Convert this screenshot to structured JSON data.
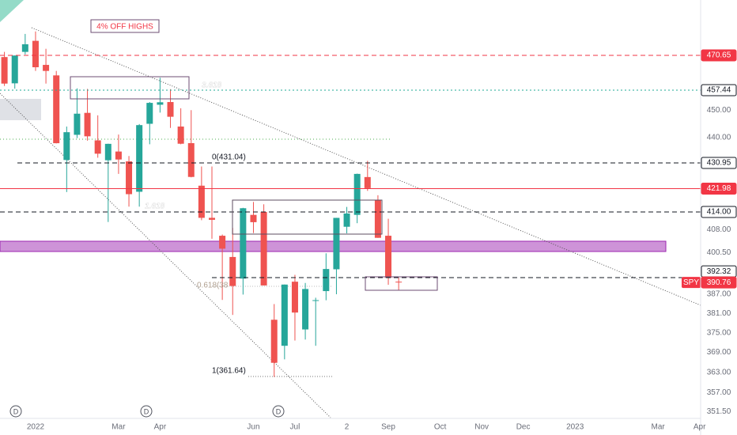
{
  "chart_data": {
    "type": "candlestick",
    "log_scale": true,
    "up_color": "#26a69a",
    "down_color": "#ef5350",
    "categories": [
      null,
      null,
      null,
      "2022",
      null,
      null,
      null,
      null,
      null,
      null,
      null,
      "Mar",
      null,
      null,
      null,
      "Apr",
      null,
      null,
      null,
      null,
      null,
      null,
      null,
      null,
      "Jun",
      null,
      null,
      null,
      "Jul",
      null,
      null,
      null,
      null,
      "2",
      null,
      null,
      null,
      "Sep",
      null,
      null,
      null,
      null,
      "Oct",
      null,
      null,
      null,
      "Nov",
      null,
      null,
      null,
      "Dec",
      null,
      null,
      null,
      null,
      "2023",
      null,
      null,
      null,
      null,
      null,
      null,
      null,
      "Mar",
      null,
      null,
      null,
      "Apr"
    ],
    "open": [
      470,
      460,
      472,
      476.3,
      467,
      463,
      432,
      441,
      449,
      439,
      431.9,
      435,
      431.5,
      420.9,
      445,
      452,
      453,
      444,
      438,
      423,
      412,
      406,
      399,
      392,
      413,
      414,
      379,
      371,
      391,
      376,
      385,
      388,
      395,
      409,
      413,
      426,
      418,
      406,
      391,
      null,
      null,
      null,
      null,
      null,
      null,
      null,
      null,
      null,
      null,
      null,
      null,
      null,
      null,
      null,
      null,
      null,
      null,
      null,
      null,
      null,
      null,
      null,
      null,
      null,
      null,
      null,
      null,
      null
    ],
    "high": [
      472,
      470.6,
      479,
      479.98,
      473.2,
      464.7,
      444,
      458.1,
      457.9,
      448.1,
      437.8,
      441.1,
      433.4,
      444.9,
      453,
      462.1,
      457.8,
      450.7,
      450,
      429.7,
      429.7,
      406.4,
      408.6,
      415.4,
      417.4,
      416.6,
      383.9,
      390.1,
      393.2,
      390.6,
      385.9,
      400.2,
      412,
      415.7,
      427.2,
      431.7,
      419.7,
      411.7,
      392.3,
      null,
      null,
      null,
      null,
      null,
      null,
      null,
      null,
      null,
      null,
      null,
      null,
      null,
      null,
      null,
      null,
      null,
      null,
      null,
      null,
      null,
      null,
      null,
      null,
      null,
      null,
      null,
      null,
      null
    ],
    "low": [
      459,
      458,
      471,
      464.7,
      459.9,
      437.9,
      420.8,
      439.8,
      438.9,
      432.8,
      410.6,
      427.1,
      415.8,
      415.8,
      437.6,
      449.1,
      443.5,
      437.6,
      425.9,
      411.2,
      405,
      385.2,
      380.5,
      386.9,
      406.9,
      389.8,
      361.64,
      366.9,
      372.6,
      372.9,
      371,
      385.1,
      387,
      406.8,
      410.2,
      421.2,
      405.3,
      390,
      388.4,
      null,
      null,
      null,
      null,
      null,
      null,
      null,
      null,
      null,
      null,
      null,
      null,
      null,
      null,
      null,
      null,
      null,
      null,
      null,
      null,
      null,
      null,
      null,
      null,
      null,
      null,
      null,
      null,
      null
    ],
    "close": [
      459.9,
      470.6,
      474.96,
      466.1,
      464.7,
      437.98,
      441.95,
      448.7,
      440.46,
      434.23,
      437.75,
      432.17,
      420.07,
      444.52,
      452.69,
      452.92,
      447.57,
      437.79,
      426.04,
      412,
      411.34,
      401.72,
      389.63,
      415.26,
      410.54,
      389.8,
      365.86,
      390.08,
      381.24,
      388.67,
      385.13,
      395.09,
      411.99,
      413.47,
      427.1,
      422.14,
      405.31,
      392.24,
      390.76,
      null,
      null,
      null,
      null,
      null,
      null,
      null,
      null,
      null,
      null,
      null,
      null,
      null,
      null,
      null,
      null,
      null,
      null,
      null,
      null,
      null,
      null,
      null,
      null,
      null,
      null,
      null,
      null,
      null
    ],
    "ylim": [
      349.8,
      492.5
    ],
    "yticks": [
      {
        "value": 351.5,
        "label": "351.50"
      },
      {
        "value": 357,
        "label": "357.00"
      },
      {
        "value": 363,
        "label": "363.00"
      },
      {
        "value": 369,
        "label": "369.00"
      },
      {
        "value": 375,
        "label": "375.00"
      },
      {
        "value": 381,
        "label": "381.00"
      },
      {
        "value": 387,
        "label": "387.00"
      },
      {
        "value": 400.5,
        "label": "400.50"
      },
      {
        "value": 408,
        "label": "408.00"
      },
      {
        "value": 440,
        "label": "440.00"
      },
      {
        "value": 450,
        "label": "450.00"
      }
    ],
    "levels": [
      {
        "value": 470.65,
        "color": "#f23645",
        "style": "dashed",
        "filled": true
      },
      {
        "value": 457.44,
        "color": "#22ab94",
        "style": "dotted",
        "filled": false
      },
      {
        "value": 430.95,
        "color": "#131722",
        "style": "dashed",
        "filled": false
      },
      {
        "value": 421.98,
        "color": "#f23645",
        "style": "solid",
        "filled": true
      },
      {
        "value": {
          "value": 414,
          "label": "414.00"
        },
        "color": "#131722",
        "style": "dashed",
        "filled": false
      },
      {
        "value": 392.32,
        "color": "#131722",
        "style": "dashed",
        "filled": false
      },
      {
        "name": "SPY",
        "value": 390.76,
        "color": "#f23645",
        "style": "none",
        "filled": true
      }
    ],
    "annotations": {
      "off_highs": "4% OFF HIGHS",
      "ext_3618": "3.618",
      "ext_1618": "1.618",
      "fib_0": "0(431.04)",
      "fib_0618": "0.618(38",
      "fib_1": "1(361.64)"
    },
    "dividend_markers": [
      "D",
      "D",
      "D"
    ]
  }
}
